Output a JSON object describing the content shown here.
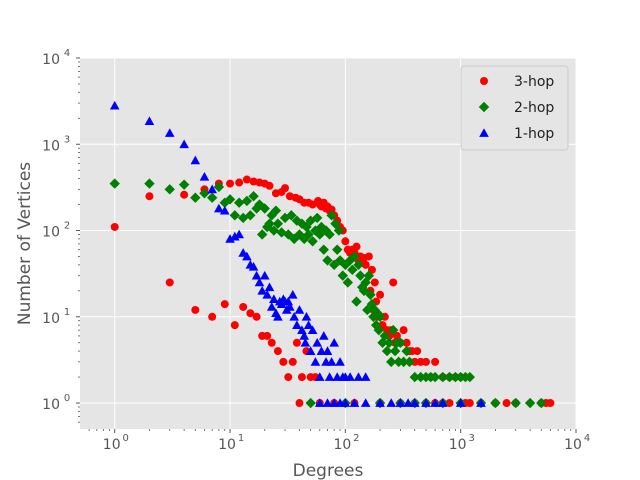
{
  "chart_data": {
    "type": "scatter",
    "title": "",
    "xlabel": "Degrees",
    "ylabel": "Number of Vertices",
    "xscale": "log",
    "yscale": "log",
    "xlim": [
      0.5,
      10000
    ],
    "ylim": [
      0.5,
      10000
    ],
    "x_ticks": [
      {
        "base": "10",
        "exp": "0",
        "value": 1
      },
      {
        "base": "10",
        "exp": "1",
        "value": 10
      },
      {
        "base": "10",
        "exp": "2",
        "value": 100
      },
      {
        "base": "10",
        "exp": "3",
        "value": 1000
      },
      {
        "base": "10",
        "exp": "4",
        "value": 10000
      }
    ],
    "y_ticks": [
      {
        "base": "10",
        "exp": "0",
        "value": 1
      },
      {
        "base": "10",
        "exp": "1",
        "value": 10
      },
      {
        "base": "10",
        "exp": "2",
        "value": 100
      },
      {
        "base": "10",
        "exp": "3",
        "value": 1000
      },
      {
        "base": "10",
        "exp": "4",
        "value": 10000
      }
    ],
    "grid": true,
    "style": "ggplot",
    "legend_position": "top-right",
    "series": [
      {
        "name": "3-hop",
        "color": "#ff0000",
        "marker": "circle",
        "points": [
          [
            1,
            110
          ],
          [
            2,
            250
          ],
          [
            3,
            25
          ],
          [
            4,
            260
          ],
          [
            5,
            12
          ],
          [
            6,
            300
          ],
          [
            7,
            10
          ],
          [
            8,
            350
          ],
          [
            9,
            14
          ],
          [
            10,
            350
          ],
          [
            11,
            8
          ],
          [
            12,
            360
          ],
          [
            13,
            13
          ],
          [
            14,
            390
          ],
          [
            15,
            11
          ],
          [
            16,
            370
          ],
          [
            17,
            10
          ],
          [
            18,
            360
          ],
          [
            19,
            6
          ],
          [
            20,
            350
          ],
          [
            21,
            6
          ],
          [
            22,
            330
          ],
          [
            23,
            5
          ],
          [
            25,
            270
          ],
          [
            26,
            4
          ],
          [
            28,
            280
          ],
          [
            29,
            3
          ],
          [
            30,
            310
          ],
          [
            32,
            2
          ],
          [
            33,
            250
          ],
          [
            35,
            3
          ],
          [
            37,
            240
          ],
          [
            38,
            5
          ],
          [
            40,
            230
          ],
          [
            42,
            2
          ],
          [
            44,
            210
          ],
          [
            46,
            4
          ],
          [
            48,
            210
          ],
          [
            50,
            2
          ],
          [
            52,
            200
          ],
          [
            55,
            2
          ],
          [
            58,
            220
          ],
          [
            60,
            200
          ],
          [
            62,
            190
          ],
          [
            65,
            210
          ],
          [
            68,
            180
          ],
          [
            70,
            190
          ],
          [
            73,
            170
          ],
          [
            76,
            175
          ],
          [
            80,
            150
          ],
          [
            85,
            130
          ],
          [
            90,
            110
          ],
          [
            95,
            100
          ],
          [
            100,
            75
          ],
          [
            105,
            60
          ],
          [
            110,
            55
          ],
          [
            115,
            60
          ],
          [
            120,
            55
          ],
          [
            125,
            65
          ],
          [
            130,
            45
          ],
          [
            135,
            50
          ],
          [
            140,
            45
          ],
          [
            145,
            48
          ],
          [
            150,
            40
          ],
          [
            160,
            50
          ],
          [
            165,
            20
          ],
          [
            170,
            35
          ],
          [
            175,
            12
          ],
          [
            180,
            25
          ],
          [
            185,
            15
          ],
          [
            190,
            10
          ],
          [
            200,
            18
          ],
          [
            210,
            8
          ],
          [
            220,
            10
          ],
          [
            230,
            7
          ],
          [
            240,
            6
          ],
          [
            250,
            7
          ],
          [
            260,
            25
          ],
          [
            270,
            5
          ],
          [
            280,
            6
          ],
          [
            300,
            5
          ],
          [
            320,
            7
          ],
          [
            340,
            5
          ],
          [
            360,
            4
          ],
          [
            380,
            4
          ],
          [
            400,
            3
          ],
          [
            420,
            4
          ],
          [
            450,
            3
          ],
          [
            500,
            3
          ],
          [
            550,
            2
          ],
          [
            600,
            3
          ],
          [
            700,
            2
          ],
          [
            800,
            2
          ],
          [
            900,
            2
          ],
          [
            1000,
            2
          ],
          [
            1100,
            1
          ],
          [
            1200,
            1
          ],
          [
            1500,
            1
          ],
          [
            2000,
            1
          ],
          [
            2500,
            1
          ],
          [
            3000,
            1
          ],
          [
            5000,
            1
          ],
          [
            5500,
            1
          ],
          [
            6000,
            1
          ],
          [
            40,
            1
          ],
          [
            60,
            1
          ],
          [
            80,
            1
          ],
          [
            120,
            1
          ],
          [
            200,
            1
          ],
          [
            300,
            1
          ],
          [
            400,
            1
          ],
          [
            500,
            1
          ],
          [
            600,
            1
          ],
          [
            700,
            1
          ],
          [
            800,
            1
          ]
        ]
      },
      {
        "name": "2-hop",
        "color": "#008000",
        "marker": "diamond",
        "points": [
          [
            1,
            350
          ],
          [
            2,
            350
          ],
          [
            3,
            300
          ],
          [
            4,
            340
          ],
          [
            5,
            240
          ],
          [
            6,
            270
          ],
          [
            7,
            240
          ],
          [
            8,
            320
          ],
          [
            9,
            210
          ],
          [
            10,
            230
          ],
          [
            11,
            150
          ],
          [
            12,
            210
          ],
          [
            13,
            140
          ],
          [
            14,
            220
          ],
          [
            15,
            150
          ],
          [
            16,
            250
          ],
          [
            17,
            180
          ],
          [
            18,
            200
          ],
          [
            19,
            90
          ],
          [
            20,
            180
          ],
          [
            21,
            110
          ],
          [
            22,
            120
          ],
          [
            23,
            150
          ],
          [
            24,
            100
          ],
          [
            25,
            170
          ],
          [
            26,
            120
          ],
          [
            28,
            95
          ],
          [
            30,
            140
          ],
          [
            32,
            90
          ],
          [
            34,
            150
          ],
          [
            36,
            80
          ],
          [
            38,
            130
          ],
          [
            40,
            90
          ],
          [
            42,
            120
          ],
          [
            44,
            80
          ],
          [
            46,
            110
          ],
          [
            48,
            90
          ],
          [
            50,
            130
          ],
          [
            52,
            75
          ],
          [
            55,
            100
          ],
          [
            57,
            140
          ],
          [
            60,
            90
          ],
          [
            62,
            110
          ],
          [
            65,
            60
          ],
          [
            68,
            100
          ],
          [
            70,
            45
          ],
          [
            73,
            90
          ],
          [
            76,
            150
          ],
          [
            80,
            40
          ],
          [
            82,
            120
          ],
          [
            85,
            60
          ],
          [
            88,
            100
          ],
          [
            90,
            45
          ],
          [
            95,
            30
          ],
          [
            100,
            40
          ],
          [
            105,
            25
          ],
          [
            110,
            45
          ],
          [
            115,
            35
          ],
          [
            120,
            50
          ],
          [
            125,
            15
          ],
          [
            130,
            40
          ],
          [
            135,
            30
          ],
          [
            140,
            22
          ],
          [
            145,
            20
          ],
          [
            150,
            25
          ],
          [
            155,
            12
          ],
          [
            160,
            30
          ],
          [
            165,
            18
          ],
          [
            170,
            14
          ],
          [
            175,
            10
          ],
          [
            180,
            12
          ],
          [
            185,
            8
          ],
          [
            190,
            11
          ],
          [
            195,
            7
          ],
          [
            200,
            10
          ],
          [
            210,
            5
          ],
          [
            220,
            6
          ],
          [
            230,
            4
          ],
          [
            240,
            5
          ],
          [
            250,
            3
          ],
          [
            260,
            7
          ],
          [
            270,
            4
          ],
          [
            280,
            5
          ],
          [
            290,
            3
          ],
          [
            300,
            5
          ],
          [
            320,
            3
          ],
          [
            340,
            4
          ],
          [
            360,
            3
          ],
          [
            400,
            2
          ],
          [
            450,
            2
          ],
          [
            500,
            2
          ],
          [
            550,
            2
          ],
          [
            600,
            2
          ],
          [
            700,
            2
          ],
          [
            800,
            2
          ],
          [
            900,
            2
          ],
          [
            1000,
            2
          ],
          [
            1100,
            2
          ],
          [
            1200,
            2
          ],
          [
            1500,
            1
          ],
          [
            2000,
            1
          ],
          [
            3000,
            1
          ],
          [
            4000,
            1
          ],
          [
            5000,
            1
          ],
          [
            50,
            1
          ],
          [
            100,
            1
          ],
          [
            200,
            1
          ],
          [
            300,
            1
          ],
          [
            400,
            1
          ],
          [
            500,
            1
          ],
          [
            700,
            1
          ],
          [
            1000,
            1
          ]
        ]
      },
      {
        "name": "1-hop",
        "color": "#0000ff",
        "marker": "triangle",
        "points": [
          [
            1,
            2800
          ],
          [
            2,
            1850
          ],
          [
            3,
            1350
          ],
          [
            4,
            1000
          ],
          [
            5,
            650
          ],
          [
            6,
            420
          ],
          [
            7,
            300
          ],
          [
            8,
            180
          ],
          [
            9,
            170
          ],
          [
            10,
            80
          ],
          [
            11,
            85
          ],
          [
            12,
            90
          ],
          [
            13,
            55
          ],
          [
            14,
            50
          ],
          [
            15,
            40
          ],
          [
            16,
            38
          ],
          [
            17,
            30
          ],
          [
            18,
            25
          ],
          [
            19,
            20
          ],
          [
            20,
            30
          ],
          [
            21,
            18
          ],
          [
            22,
            22
          ],
          [
            23,
            13
          ],
          [
            24,
            16
          ],
          [
            25,
            11
          ],
          [
            26,
            10
          ],
          [
            27,
            15
          ],
          [
            28,
            14
          ],
          [
            29,
            16
          ],
          [
            30,
            15
          ],
          [
            31,
            12
          ],
          [
            32,
            15
          ],
          [
            33,
            13
          ],
          [
            35,
            18
          ],
          [
            36,
            10
          ],
          [
            38,
            8
          ],
          [
            40,
            12
          ],
          [
            42,
            7
          ],
          [
            44,
            6
          ],
          [
            45,
            5
          ],
          [
            46,
            10
          ],
          [
            48,
            8
          ],
          [
            50,
            4
          ],
          [
            52,
            7
          ],
          [
            55,
            3
          ],
          [
            57,
            5
          ],
          [
            60,
            2
          ],
          [
            62,
            4
          ],
          [
            65,
            6
          ],
          [
            68,
            3
          ],
          [
            70,
            4
          ],
          [
            73,
            2
          ],
          [
            76,
            3
          ],
          [
            80,
            5
          ],
          [
            85,
            2
          ],
          [
            90,
            3
          ],
          [
            95,
            2
          ],
          [
            100,
            2
          ],
          [
            110,
            2
          ],
          [
            130,
            2
          ],
          [
            150,
            2
          ],
          [
            60,
            1
          ],
          [
            70,
            1
          ],
          [
            80,
            1
          ],
          [
            90,
            1
          ],
          [
            100,
            1
          ],
          [
            120,
            1
          ],
          [
            150,
            1
          ],
          [
            200,
            1
          ],
          [
            250,
            1
          ],
          [
            300,
            1
          ],
          [
            350,
            1
          ],
          [
            400,
            1
          ],
          [
            500,
            1
          ],
          [
            600,
            1
          ],
          [
            700,
            1
          ],
          [
            1000,
            1
          ],
          [
            1500,
            1
          ]
        ]
      }
    ]
  }
}
